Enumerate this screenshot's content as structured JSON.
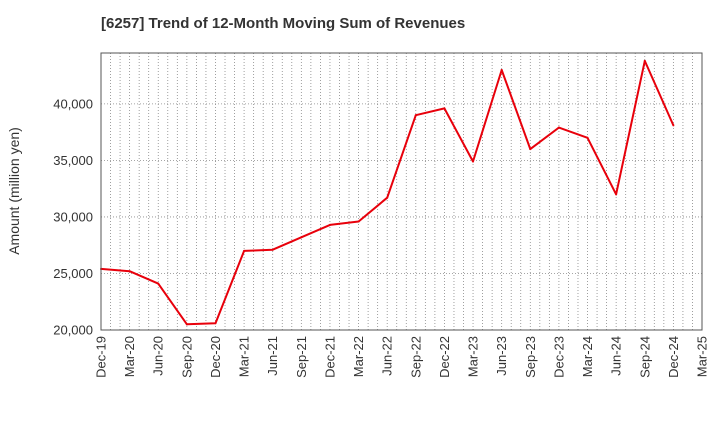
{
  "chart_data": {
    "type": "line",
    "title": "[6257]  Trend of 12-Month Moving Sum of Revenues",
    "ylabel": "Amount (million yen)",
    "xlabel": "",
    "ylim": [
      20000,
      44500
    ],
    "yticks": [
      20000,
      25000,
      30000,
      35000,
      40000
    ],
    "ytick_labels": [
      "20,000",
      "25,000",
      "30,000",
      "35,000",
      "40,000"
    ],
    "x_tick_labels": [
      "Dec-19",
      "Mar-20",
      "Jun-20",
      "Sep-20",
      "Dec-20",
      "Mar-21",
      "Jun-21",
      "Sep-21",
      "Dec-21",
      "Mar-22",
      "Jun-22",
      "Sep-22",
      "Dec-22",
      "Mar-23",
      "Jun-23",
      "Sep-23",
      "Dec-23",
      "Mar-24",
      "Jun-24",
      "Sep-24",
      "Dec-24",
      "Mar-25"
    ],
    "grid": true,
    "line_color": "#e8000b",
    "series": [
      {
        "x": [
          "Dec-19",
          "Mar-20",
          "Jun-20",
          "Sep-20",
          "Dec-20",
          "Mar-21",
          "Jun-21",
          "Sep-21",
          "Dec-21",
          "Mar-22",
          "Jun-22",
          "Sep-22",
          "Dec-22",
          "Mar-23",
          "Jun-23",
          "Sep-23",
          "Dec-23",
          "Mar-24",
          "Jun-24",
          "Sep-24",
          "Dec-24"
        ],
        "values": [
          25400,
          25200,
          24100,
          20500,
          20600,
          27000,
          27100,
          28200,
          29300,
          29600,
          31700,
          39000,
          39600,
          34900,
          43000,
          36000,
          37900,
          37000,
          32000,
          43800,
          38100
        ]
      }
    ]
  }
}
